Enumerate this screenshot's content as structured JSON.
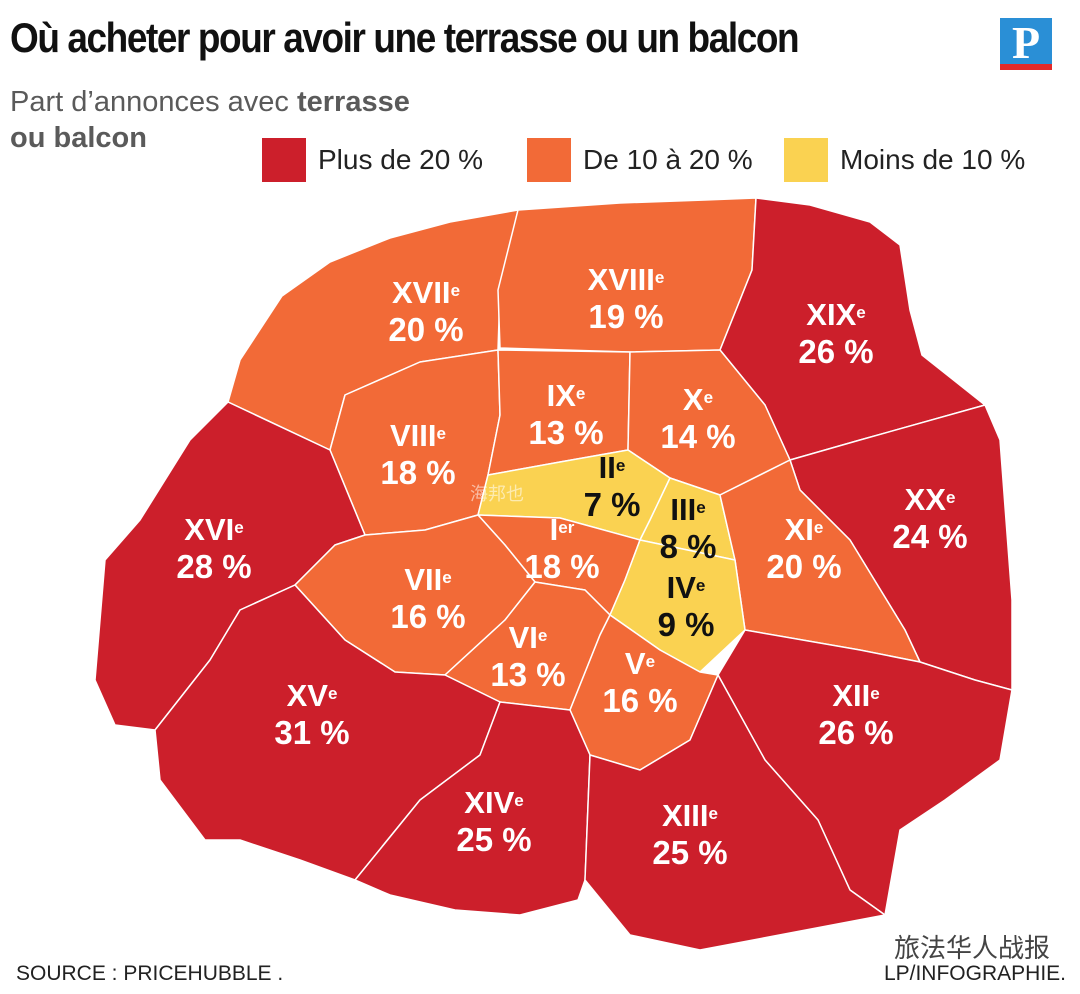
{
  "title": "Où acheter pour avoir une terrasse ou un balcon",
  "logo_letter": "P",
  "subtitle_normal": "Part d’annonces avec ",
  "subtitle_bold_1": "terrasse",
  "subtitle_bold_2": "ou balcon",
  "legend": [
    {
      "label": "Plus de 20 %",
      "color": "#cc1f2b"
    },
    {
      "label": "De 10 à 20 %",
      "color": "#f26a37"
    },
    {
      "label": "Moins de 10 %",
      "color": "#fad251"
    }
  ],
  "colors": {
    "high": "#cc1f2b",
    "mid": "#f26a37",
    "low": "#fad251",
    "border": "#ffffff"
  },
  "districts": [
    {
      "id": "xvii",
      "name": "XVII",
      "sup": "e",
      "value": "20 %",
      "class": "mid"
    },
    {
      "id": "xviii",
      "name": "XVIII",
      "sup": "e",
      "value": "19 %",
      "class": "mid"
    },
    {
      "id": "xix",
      "name": "XIX",
      "sup": "e",
      "value": "26 %",
      "class": "high"
    },
    {
      "id": "viii",
      "name": "VIII",
      "sup": "e",
      "value": "18 %",
      "class": "mid"
    },
    {
      "id": "ix",
      "name": "IX",
      "sup": "e",
      "value": "13 %",
      "class": "mid"
    },
    {
      "id": "x",
      "name": "X",
      "sup": "e",
      "value": "14 %",
      "class": "mid"
    },
    {
      "id": "xvi",
      "name": "XVI",
      "sup": "e",
      "value": "28 %",
      "class": "high"
    },
    {
      "id": "ii",
      "name": "II",
      "sup": "e",
      "value": "7 %",
      "class": "low"
    },
    {
      "id": "iii",
      "name": "III",
      "sup": "e",
      "value": "8 %",
      "class": "low"
    },
    {
      "id": "xx",
      "name": "XX",
      "sup": "e",
      "value": "24 %",
      "class": "high"
    },
    {
      "id": "i",
      "name": "I",
      "sup": "er",
      "value": "18 %",
      "class": "mid"
    },
    {
      "id": "xi",
      "name": "XI",
      "sup": "e",
      "value": "20 %",
      "class": "mid"
    },
    {
      "id": "vii",
      "name": "VII",
      "sup": "e",
      "value": "16 %",
      "class": "mid"
    },
    {
      "id": "iv",
      "name": "IV",
      "sup": "e",
      "value": "9 %",
      "class": "low"
    },
    {
      "id": "vi",
      "name": "VI",
      "sup": "e",
      "value": "13 %",
      "class": "mid"
    },
    {
      "id": "v",
      "name": "V",
      "sup": "e",
      "value": "16 %",
      "class": "mid"
    },
    {
      "id": "xv",
      "name": "XV",
      "sup": "e",
      "value": "31 %",
      "class": "high"
    },
    {
      "id": "xii",
      "name": "XII",
      "sup": "e",
      "value": "26 %",
      "class": "high"
    },
    {
      "id": "xiv",
      "name": "XIV",
      "sup": "e",
      "value": "25 %",
      "class": "high"
    },
    {
      "id": "xiii",
      "name": "XIII",
      "sup": "e",
      "value": "25 %",
      "class": "high"
    }
  ],
  "source": "SOURCE : PRICEHUBBLE .",
  "credit": "LP/INFOGRAPHIE.",
  "wechat": "旅法华人战报",
  "watermark": "海邦也"
}
